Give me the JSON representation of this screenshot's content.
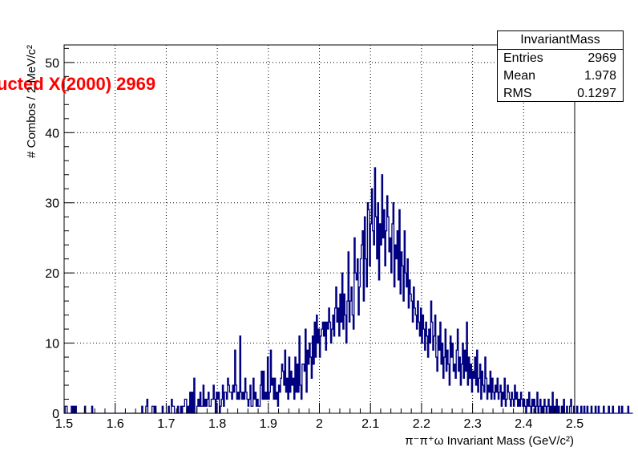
{
  "chart_data": {
    "type": "histogram",
    "title": "",
    "overlay_label": "ucted X(2000) 2969",
    "xlabel": "π⁻π⁺ω Invariant Mass (GeV/c²)",
    "ylabel": "# Combos / 2 MeV/c²",
    "xlim": [
      1.5,
      2.5
    ],
    "ylim": [
      0,
      52.5
    ],
    "bin_width": 0.002,
    "grid": true,
    "line_color": "#000080",
    "xticks": [
      "1.5",
      "1.6",
      "1.7",
      "1.8",
      "1.9",
      "2",
      "2.1",
      "2.2",
      "2.3",
      "2.4",
      "2.5"
    ],
    "yticks": [
      "0",
      "10",
      "20",
      "30",
      "40",
      "50"
    ],
    "stats": {
      "title": "InvariantMass",
      "rows": [
        {
          "label": "Entries",
          "value": "2969"
        },
        {
          "label": "Mean",
          "value": "1.978"
        },
        {
          "label": "RMS",
          "value": "0.1297"
        }
      ]
    },
    "counts": [
      0,
      1,
      1,
      0,
      0,
      0,
      0,
      1,
      0,
      1,
      0,
      1,
      0,
      0,
      0,
      0,
      0,
      0,
      0,
      0,
      1,
      0,
      0,
      0,
      0,
      0,
      0,
      1,
      0,
      0,
      0,
      0,
      0,
      0,
      0,
      0,
      0,
      0,
      0,
      0,
      0,
      0,
      0,
      0,
      0,
      0,
      0,
      0,
      0,
      0,
      0,
      0,
      0,
      0,
      0,
      0,
      0,
      0,
      0,
      0,
      0,
      0,
      0,
      0,
      0,
      0,
      0,
      0,
      0,
      0,
      0,
      0,
      0,
      0,
      0,
      0,
      1,
      0,
      0,
      0,
      1,
      2,
      0,
      0,
      0,
      0,
      1,
      1,
      0,
      1,
      0,
      0,
      0,
      0,
      0,
      0,
      1,
      0,
      0,
      0,
      0,
      0,
      1,
      0,
      0,
      2,
      1,
      1,
      0,
      0,
      0,
      1,
      0,
      0,
      1,
      0,
      1,
      1,
      2,
      2,
      0,
      1,
      0,
      3,
      0,
      3,
      0,
      5,
      0,
      0,
      1,
      2,
      1,
      3,
      1,
      1,
      4,
      1,
      2,
      1,
      2,
      3,
      1,
      1,
      2,
      2,
      4,
      2,
      0,
      3,
      2,
      3,
      0,
      1,
      2,
      4,
      1,
      3,
      3,
      2,
      5,
      4,
      3,
      3,
      2,
      4,
      3,
      9,
      4,
      2,
      3,
      2,
      11,
      3,
      2,
      3,
      2,
      5,
      3,
      2,
      1,
      2,
      4,
      1,
      1,
      5,
      2,
      3,
      1,
      2,
      1,
      1,
      4,
      6,
      2,
      6,
      2,
      3,
      2,
      8,
      2,
      3,
      9,
      4,
      5,
      2,
      5,
      2,
      3,
      1,
      4,
      3,
      5,
      7,
      6,
      4,
      9,
      3,
      5,
      2,
      8,
      3,
      6,
      4,
      5,
      2,
      8,
      3,
      7,
      3,
      11,
      4,
      2,
      7,
      7,
      6,
      12,
      3,
      9,
      7,
      10,
      8,
      5,
      11,
      7,
      13,
      8,
      14,
      10,
      12,
      8,
      11,
      12,
      13,
      11,
      13,
      9,
      13,
      12,
      15,
      13,
      10,
      12,
      14,
      11,
      15,
      18,
      13,
      15,
      11,
      17,
      13,
      20,
      12,
      17,
      14,
      10,
      16,
      23,
      13,
      16,
      18,
      14,
      12,
      25,
      20,
      19,
      22,
      14,
      18,
      22,
      24,
      26,
      16,
      28,
      22,
      18,
      30,
      29,
      21,
      27,
      32,
      26,
      24,
      35,
      28,
      22,
      30,
      19,
      27,
      24,
      34,
      25,
      29,
      21,
      26,
      31,
      28,
      23,
      25,
      20,
      27,
      30,
      18,
      24,
      22,
      26,
      19,
      29,
      17,
      23,
      21,
      16,
      26,
      20,
      18,
      22,
      15,
      19,
      17,
      16,
      13,
      18,
      15,
      14,
      12,
      16,
      13,
      11,
      15,
      10,
      14,
      12,
      9,
      13,
      11,
      8,
      12,
      10,
      16,
      13,
      9,
      11,
      14,
      8,
      6,
      11,
      9,
      13,
      7,
      10,
      5,
      8,
      12,
      6,
      9,
      7,
      4,
      11,
      8,
      10,
      6,
      7,
      5,
      9,
      12,
      6,
      8,
      4,
      7,
      10,
      5,
      9,
      6,
      13,
      4,
      8,
      5,
      7,
      3,
      6,
      5,
      8,
      4,
      9,
      3,
      5,
      7,
      2,
      6,
      4,
      3,
      8,
      5,
      2,
      4,
      3,
      6,
      2,
      5,
      3,
      2,
      4,
      3,
      5,
      2,
      3,
      4,
      1,
      3,
      2,
      5,
      1,
      2,
      4,
      3,
      2,
      1,
      3,
      2,
      1,
      4,
      2,
      3,
      1,
      2,
      1,
      3,
      2,
      1,
      2,
      1,
      0,
      2,
      1,
      3,
      1,
      0,
      2,
      1,
      2,
      0,
      1,
      3,
      0,
      1,
      2,
      0,
      1,
      0,
      2,
      1,
      0,
      1,
      2,
      0,
      1,
      0,
      3,
      0,
      1,
      0,
      2,
      0,
      1,
      0,
      0,
      1,
      0,
      2,
      0,
      0,
      1,
      0,
      0,
      1,
      2,
      0,
      0,
      1,
      0,
      0,
      1,
      0,
      0,
      0,
      1,
      0,
      0,
      1,
      0,
      0,
      1,
      0,
      0,
      0,
      1,
      0,
      0,
      0,
      1,
      0,
      0,
      1,
      0,
      0,
      0,
      0,
      1,
      0,
      0,
      0,
      0,
      1,
      0,
      0,
      0,
      1,
      0,
      0,
      0,
      0,
      0,
      1,
      0,
      0,
      1,
      0,
      0,
      0,
      0,
      0,
      1,
      0,
      0,
      0,
      0
    ]
  }
}
